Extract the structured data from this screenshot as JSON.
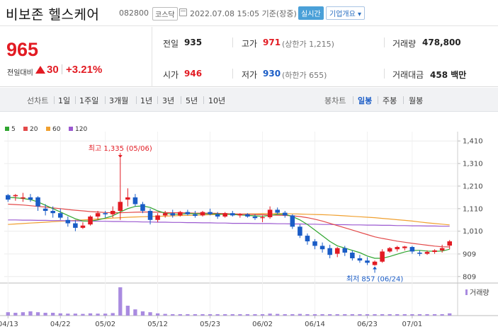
{
  "header": {
    "name": "비보존 헬스케어",
    "code": "082800",
    "market": "코스닥",
    "datetime": "2022.07.08 15:05 기준(장중)",
    "realtime": "실시간",
    "company_info": "기업개요 ▾"
  },
  "price": {
    "current": "965",
    "change_label": "전일대비",
    "change": "30",
    "change_pct": "+3.21%"
  },
  "stats": {
    "prev_label": "전일",
    "prev": "935",
    "open_label": "시가",
    "open": "946",
    "high_label": "고가",
    "high": "971",
    "upper_limit": "(상한가 1,215)",
    "low_label": "저가",
    "low": "930",
    "lower_limit": "(하한가 655)",
    "volume_label": "거래량",
    "volume": "478,800",
    "amount_label": "거래대금",
    "amount": "458 백만"
  },
  "tabs": {
    "line_chart": "선차트",
    "line_items": [
      "1일",
      "1주일",
      "3개월",
      "1년",
      "3년",
      "5년",
      "10년"
    ],
    "line_active": "3개월",
    "candle_chart": "봉차트",
    "candle_items": [
      "일봉",
      "주봉",
      "월봉"
    ],
    "candle_active": "일봉"
  },
  "colors": {
    "up": "#e21b23",
    "down": "#1a5cc6",
    "ma5": "#2fa52f",
    "ma20": "#e34a4a",
    "ma60": "#f0a030",
    "ma120": "#9b59d0",
    "volume": "#a98be0"
  },
  "chart_data": {
    "type": "candlestick",
    "legend": [
      {
        "name": "5",
        "color": "#2fa52f"
      },
      {
        "name": "20",
        "color": "#e34a4a"
      },
      {
        "name": "60",
        "color": "#f0a030"
      },
      {
        "name": "120",
        "color": "#9b59d0"
      }
    ],
    "y_ticks": [
      "1,410",
      "1,310",
      "1,210",
      "1,110",
      "1,010",
      "909",
      "809"
    ],
    "y_tick_values": [
      1410,
      1310,
      1210,
      1110,
      1010,
      909,
      809
    ],
    "ylim": [
      799,
      1420
    ],
    "x_ticks": [
      {
        "label": "04/13",
        "i": 0
      },
      {
        "label": "04/22",
        "i": 7
      },
      {
        "label": "05/02",
        "i": 13
      },
      {
        "label": "05/12",
        "i": 20
      },
      {
        "label": "05/23",
        "i": 27
      },
      {
        "label": "06/02",
        "i": 34
      },
      {
        "label": "06/14",
        "i": 41
      },
      {
        "label": "06/23",
        "i": 48
      },
      {
        "label": "07/01",
        "i": 54
      }
    ],
    "high_annotation": "최고 1,335 (05/06)",
    "high_index": 15,
    "high_value": 1335,
    "low_annotation": "최저 857 (06/24)",
    "low_index": 49,
    "low_value": 857,
    "volume_label": "거래량",
    "candles": [
      [
        1170,
        1175,
        1140,
        1150
      ],
      [
        1165,
        1175,
        1145,
        1170
      ],
      [
        1155,
        1180,
        1140,
        1160
      ],
      [
        1160,
        1175,
        1140,
        1150
      ],
      [
        1160,
        1165,
        1100,
        1120
      ],
      [
        1110,
        1130,
        1080,
        1100
      ],
      [
        1100,
        1120,
        1070,
        1090
      ],
      [
        1090,
        1110,
        1060,
        1070
      ],
      [
        1060,
        1075,
        1030,
        1045
      ],
      [
        1045,
        1060,
        1010,
        1025
      ],
      [
        1025,
        1050,
        1020,
        1035
      ],
      [
        1040,
        1080,
        1035,
        1075
      ],
      [
        1075,
        1100,
        1060,
        1090
      ],
      [
        1090,
        1100,
        1070,
        1085
      ],
      [
        1085,
        1120,
        1070,
        1100
      ],
      [
        1100,
        1335,
        1060,
        1140
      ],
      [
        1150,
        1200,
        1120,
        1160
      ],
      [
        1160,
        1175,
        1120,
        1130
      ],
      [
        1130,
        1140,
        1090,
        1100
      ],
      [
        1100,
        1110,
        1040,
        1060
      ],
      [
        1060,
        1090,
        1050,
        1080
      ],
      [
        1080,
        1100,
        1070,
        1090
      ],
      [
        1090,
        1105,
        1070,
        1080
      ],
      [
        1080,
        1100,
        1075,
        1095
      ],
      [
        1095,
        1105,
        1080,
        1085
      ],
      [
        1085,
        1100,
        1070,
        1078
      ],
      [
        1080,
        1100,
        1075,
        1095
      ],
      [
        1095,
        1110,
        1080,
        1085
      ],
      [
        1085,
        1095,
        1065,
        1075
      ],
      [
        1075,
        1095,
        1070,
        1090
      ],
      [
        1090,
        1100,
        1075,
        1080
      ],
      [
        1080,
        1090,
        1070,
        1085
      ],
      [
        1085,
        1090,
        1070,
        1075
      ],
      [
        1075,
        1085,
        1060,
        1068
      ],
      [
        1068,
        1080,
        1050,
        1072
      ],
      [
        1072,
        1120,
        1065,
        1105
      ],
      [
        1105,
        1115,
        1085,
        1092
      ],
      [
        1092,
        1100,
        1070,
        1080
      ],
      [
        1080,
        1085,
        1020,
        1030
      ],
      [
        1030,
        1040,
        980,
        990
      ],
      [
        990,
        1000,
        950,
        965
      ],
      [
        965,
        975,
        930,
        945
      ],
      [
        945,
        960,
        915,
        930
      ],
      [
        935,
        950,
        890,
        905
      ],
      [
        910,
        940,
        895,
        935
      ],
      [
        935,
        945,
        900,
        915
      ],
      [
        915,
        925,
        880,
        890
      ],
      [
        890,
        905,
        870,
        880
      ],
      [
        880,
        895,
        860,
        870
      ],
      [
        860,
        880,
        857,
        875
      ],
      [
        875,
        930,
        870,
        920
      ],
      [
        920,
        940,
        915,
        935
      ],
      [
        930,
        945,
        920,
        940
      ],
      [
        935,
        945,
        925,
        942
      ],
      [
        940,
        945,
        910,
        920
      ],
      [
        915,
        925,
        900,
        910
      ],
      [
        910,
        925,
        905,
        918
      ],
      [
        918,
        930,
        910,
        925
      ],
      [
        925,
        950,
        915,
        935
      ],
      [
        946,
        971,
        930,
        965
      ]
    ],
    "ma5": [
      1160,
      1158,
      1155,
      1150,
      1140,
      1125,
      1110,
      1095,
      1080,
      1065,
      1055,
      1055,
      1060,
      1068,
      1078,
      1095,
      1110,
      1120,
      1122,
      1115,
      1100,
      1090,
      1085,
      1085,
      1088,
      1088,
      1087,
      1087,
      1086,
      1085,
      1084,
      1082,
      1080,
      1078,
      1076,
      1080,
      1085,
      1085,
      1075,
      1060,
      1040,
      1015,
      990,
      965,
      945,
      935,
      925,
      915,
      900,
      890,
      890,
      898,
      908,
      918,
      925,
      925,
      922,
      921,
      922,
      930
    ],
    "ma20": [
      1130,
      1128,
      1126,
      1123,
      1120,
      1117,
      1113,
      1110,
      1106,
      1103,
      1100,
      1097,
      1095,
      1093,
      1092,
      1092,
      1093,
      1094,
      1095,
      1095,
      1094,
      1093,
      1092,
      1092,
      1091,
      1090,
      1090,
      1090,
      1089,
      1088,
      1087,
      1086,
      1085,
      1084,
      1083,
      1082,
      1081,
      1080,
      1078,
      1075,
      1070,
      1063,
      1055,
      1045,
      1035,
      1025,
      1015,
      1005,
      995,
      985,
      978,
      972,
      966,
      961,
      956,
      952,
      948,
      944,
      941,
      940
    ],
    "ma60": [
      1040,
      1042,
      1044,
      1046,
      1048,
      1050,
      1052,
      1054,
      1056,
      1058,
      1060,
      1062,
      1064,
      1066,
      1068,
      1070,
      1072,
      1073,
      1074,
      1075,
      1076,
      1077,
      1078,
      1079,
      1080,
      1081,
      1082,
      1083,
      1084,
      1085,
      1086,
      1086,
      1087,
      1087,
      1088,
      1088,
      1088,
      1088,
      1087,
      1086,
      1085,
      1084,
      1083,
      1082,
      1080,
      1078,
      1076,
      1074,
      1072,
      1070,
      1067,
      1064,
      1061,
      1058,
      1055,
      1051,
      1047,
      1044,
      1041,
      1038
    ],
    "ma120": [
      1060,
      1060,
      1059,
      1059,
      1058,
      1058,
      1057,
      1057,
      1056,
      1056,
      1055,
      1055,
      1054,
      1054,
      1053,
      1053,
      1052,
      1052,
      1051,
      1051,
      1050,
      1050,
      1049,
      1049,
      1048,
      1048,
      1047,
      1047,
      1046,
      1046,
      1045,
      1045,
      1045,
      1044,
      1044,
      1044,
      1043,
      1043,
      1042,
      1042,
      1041,
      1041,
      1040,
      1040,
      1039,
      1039,
      1038,
      1038,
      1037,
      1037,
      1036,
      1036,
      1035,
      1035,
      1034,
      1034,
      1033,
      1033,
      1032,
      1032
    ],
    "volume": [
      0.12,
      0.1,
      0.12,
      0.15,
      0.12,
      0.1,
      0.1,
      0.08,
      0.07,
      0.07,
      0.06,
      0.08,
      0.07,
      0.07,
      0.09,
      1.0,
      0.35,
      0.22,
      0.15,
      0.12,
      0.08,
      0.06,
      0.05,
      0.05,
      0.05,
      0.05,
      0.05,
      0.05,
      0.05,
      0.05,
      0.05,
      0.05,
      0.05,
      0.05,
      0.05,
      0.07,
      0.06,
      0.05,
      0.05,
      0.06,
      0.05,
      0.05,
      0.05,
      0.05,
      0.05,
      0.05,
      0.05,
      0.05,
      0.05,
      0.05,
      0.05,
      0.05,
      0.05,
      0.05,
      0.05,
      0.05,
      0.05,
      0.05,
      0.05,
      0.08
    ]
  }
}
